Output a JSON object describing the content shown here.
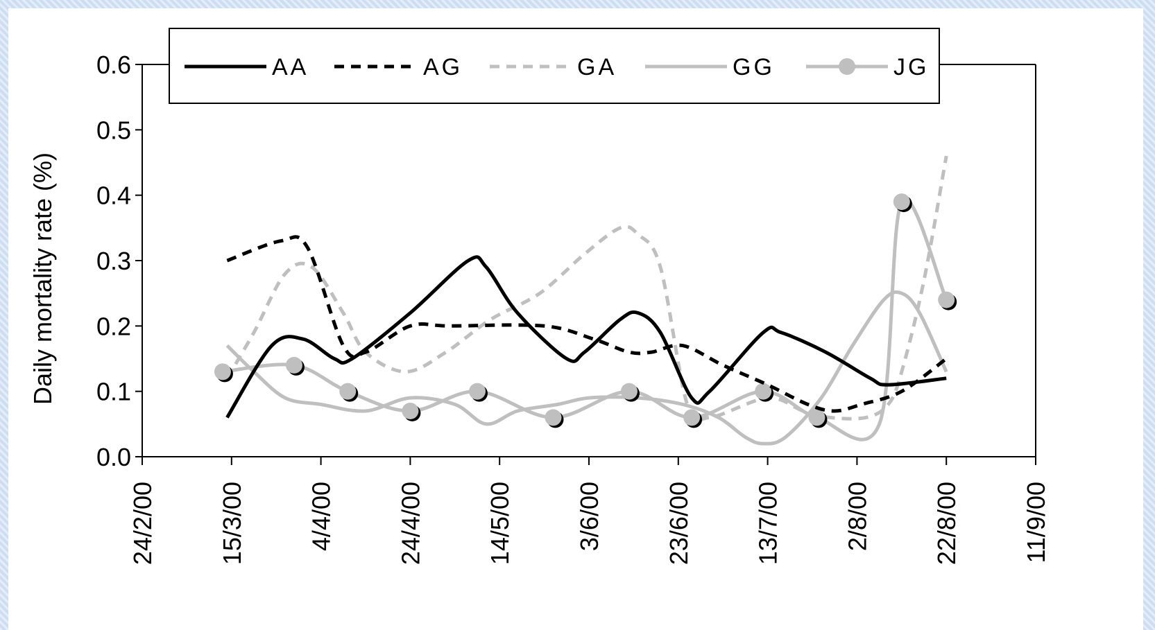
{
  "chart_data": {
    "type": "line",
    "title": "",
    "xlabel": "",
    "ylabel": "Daily mortality rate (%)",
    "ylim": [
      0,
      0.6
    ],
    "yticks": [
      "0.0",
      "0.1",
      "0.2",
      "0.3",
      "0.4",
      "0.5",
      "0.6"
    ],
    "xticks": [
      "24/2/00",
      "15/3/00",
      "4/4/00",
      "24/4/00",
      "14/5/00",
      "3/6/00",
      "23/6/00",
      "13/7/00",
      "2/8/00",
      "22/8/00",
      "11/9/00"
    ],
    "xtick_dates": [
      "2000-02-24",
      "2000-03-15",
      "2000-04-04",
      "2000-04-24",
      "2000-05-14",
      "2000-06-03",
      "2000-06-23",
      "2000-07-13",
      "2000-08-02",
      "2000-08-22",
      "2000-09-11"
    ],
    "legend_position": "top",
    "series": [
      {
        "name": "AA",
        "color": "#000000",
        "style": "solid",
        "points": [
          [
            "2000-03-14",
            0.06
          ],
          [
            "2000-03-24",
            0.17
          ],
          [
            "2000-03-31",
            0.18
          ],
          [
            "2000-04-07",
            0.15
          ],
          [
            "2000-04-11",
            0.15
          ],
          [
            "2000-04-24",
            0.22
          ],
          [
            "2000-05-07",
            0.3
          ],
          [
            "2000-05-11",
            0.29
          ],
          [
            "2000-05-18",
            0.22
          ],
          [
            "2000-05-29",
            0.15
          ],
          [
            "2000-06-02",
            0.16
          ],
          [
            "2000-06-10",
            0.21
          ],
          [
            "2000-06-14",
            0.22
          ],
          [
            "2000-06-19",
            0.19
          ],
          [
            "2000-06-26",
            0.09
          ],
          [
            "2000-06-30",
            0.1
          ],
          [
            "2000-07-12",
            0.19
          ],
          [
            "2000-07-16",
            0.19
          ],
          [
            "2000-07-26",
            0.16
          ],
          [
            "2000-08-05",
            0.12
          ],
          [
            "2000-08-09",
            0.11
          ],
          [
            "2000-08-22",
            0.12
          ]
        ]
      },
      {
        "name": "AG",
        "color": "#000000",
        "style": "dashed",
        "points": [
          [
            "2000-03-14",
            0.3
          ],
          [
            "2000-03-26",
            0.33
          ],
          [
            "2000-04-01",
            0.32
          ],
          [
            "2000-04-09",
            0.17
          ],
          [
            "2000-04-14",
            0.16
          ],
          [
            "2000-04-24",
            0.2
          ],
          [
            "2000-05-03",
            0.2
          ],
          [
            "2000-05-24",
            0.2
          ],
          [
            "2000-06-04",
            0.18
          ],
          [
            "2000-06-12",
            0.16
          ],
          [
            "2000-06-17",
            0.16
          ],
          [
            "2000-06-24",
            0.17
          ],
          [
            "2000-07-03",
            0.14
          ],
          [
            "2000-07-13",
            0.11
          ],
          [
            "2000-07-22",
            0.08
          ],
          [
            "2000-07-28",
            0.07
          ],
          [
            "2000-08-03",
            0.08
          ],
          [
            "2000-08-12",
            0.1
          ],
          [
            "2000-08-22",
            0.15
          ]
        ]
      },
      {
        "name": "GA",
        "color": "#bfbfbf",
        "style": "dashed",
        "points": [
          [
            "2000-03-14",
            0.12
          ],
          [
            "2000-03-20",
            0.19
          ],
          [
            "2000-03-27",
            0.28
          ],
          [
            "2000-04-02",
            0.29
          ],
          [
            "2000-04-09",
            0.22
          ],
          [
            "2000-04-14",
            0.16
          ],
          [
            "2000-04-23",
            0.13
          ],
          [
            "2000-05-02",
            0.16
          ],
          [
            "2000-05-12",
            0.21
          ],
          [
            "2000-05-23",
            0.25
          ],
          [
            "2000-06-02",
            0.31
          ],
          [
            "2000-06-10",
            0.35
          ],
          [
            "2000-06-14",
            0.34
          ],
          [
            "2000-06-19",
            0.29
          ],
          [
            "2000-06-25",
            0.08
          ],
          [
            "2000-06-30",
            0.06
          ],
          [
            "2000-07-13",
            0.09
          ],
          [
            "2000-07-21",
            0.07
          ],
          [
            "2000-07-27",
            0.06
          ],
          [
            "2000-08-04",
            0.06
          ],
          [
            "2000-08-09",
            0.08
          ],
          [
            "2000-08-12",
            0.13
          ],
          [
            "2000-08-17",
            0.27
          ],
          [
            "2000-08-22",
            0.46
          ]
        ]
      },
      {
        "name": "GG",
        "color": "#bfbfbf",
        "style": "solid",
        "points": [
          [
            "2000-03-14",
            0.17
          ],
          [
            "2000-03-20",
            0.13
          ],
          [
            "2000-03-27",
            0.09
          ],
          [
            "2000-04-04",
            0.08
          ],
          [
            "2000-04-14",
            0.07
          ],
          [
            "2000-04-24",
            0.09
          ],
          [
            "2000-05-04",
            0.08
          ],
          [
            "2000-05-11",
            0.05
          ],
          [
            "2000-05-18",
            0.07
          ],
          [
            "2000-05-27",
            0.08
          ],
          [
            "2000-06-03",
            0.09
          ],
          [
            "2000-06-14",
            0.09
          ],
          [
            "2000-06-24",
            0.08
          ],
          [
            "2000-07-02",
            0.06
          ],
          [
            "2000-07-08",
            0.03
          ],
          [
            "2000-07-12",
            0.02
          ],
          [
            "2000-07-17",
            0.03
          ],
          [
            "2000-07-25",
            0.09
          ],
          [
            "2000-08-01",
            0.17
          ],
          [
            "2000-08-08",
            0.24
          ],
          [
            "2000-08-12",
            0.25
          ],
          [
            "2000-08-16",
            0.22
          ],
          [
            "2000-08-22",
            0.13
          ]
        ]
      },
      {
        "name": "JG",
        "color": "#bfbfbf",
        "style": "solid-markers",
        "points": [
          [
            "2000-03-13",
            0.13
          ],
          [
            "2000-03-29",
            0.14
          ],
          [
            "2000-04-10",
            0.1
          ],
          [
            "2000-04-24",
            0.07
          ],
          [
            "2000-05-09",
            0.1
          ],
          [
            "2000-05-26",
            0.06
          ],
          [
            "2000-06-12",
            0.1
          ],
          [
            "2000-06-26",
            0.06
          ],
          [
            "2000-07-12",
            0.1
          ],
          [
            "2000-07-24",
            0.06
          ],
          [
            "2000-08-07",
            0.05
          ],
          [
            "2000-08-12",
            0.39
          ],
          [
            "2000-08-22",
            0.24
          ]
        ],
        "markers": [
          [
            "2000-03-13",
            0.13
          ],
          [
            "2000-03-29",
            0.14
          ],
          [
            "2000-04-10",
            0.1
          ],
          [
            "2000-04-24",
            0.07
          ],
          [
            "2000-05-09",
            0.1
          ],
          [
            "2000-05-26",
            0.06
          ],
          [
            "2000-06-12",
            0.1
          ],
          [
            "2000-06-26",
            0.06
          ],
          [
            "2000-07-12",
            0.1
          ],
          [
            "2000-07-24",
            0.06
          ],
          [
            "2000-08-12",
            0.39
          ],
          [
            "2000-08-22",
            0.24
          ]
        ]
      }
    ]
  }
}
